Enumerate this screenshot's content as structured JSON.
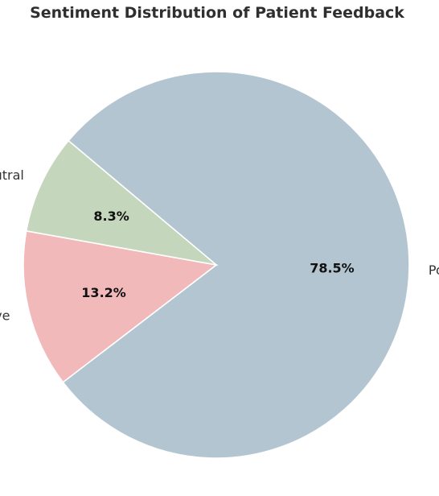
{
  "chart_data": {
    "type": "pie",
    "title": "Sentiment Distribution of Patient Feedback",
    "categories": [
      "Positive",
      "Negative",
      "Neutral"
    ],
    "values": [
      78.5,
      13.2,
      8.3
    ],
    "percent_labels": [
      "78.5%",
      "13.2%",
      "8.3%"
    ],
    "colors": [
      "#b3c5d0",
      "#f2b9ba",
      "#c4d6bb"
    ],
    "start_angle_deg": 140,
    "direction": "clockwise",
    "legend": "none"
  }
}
